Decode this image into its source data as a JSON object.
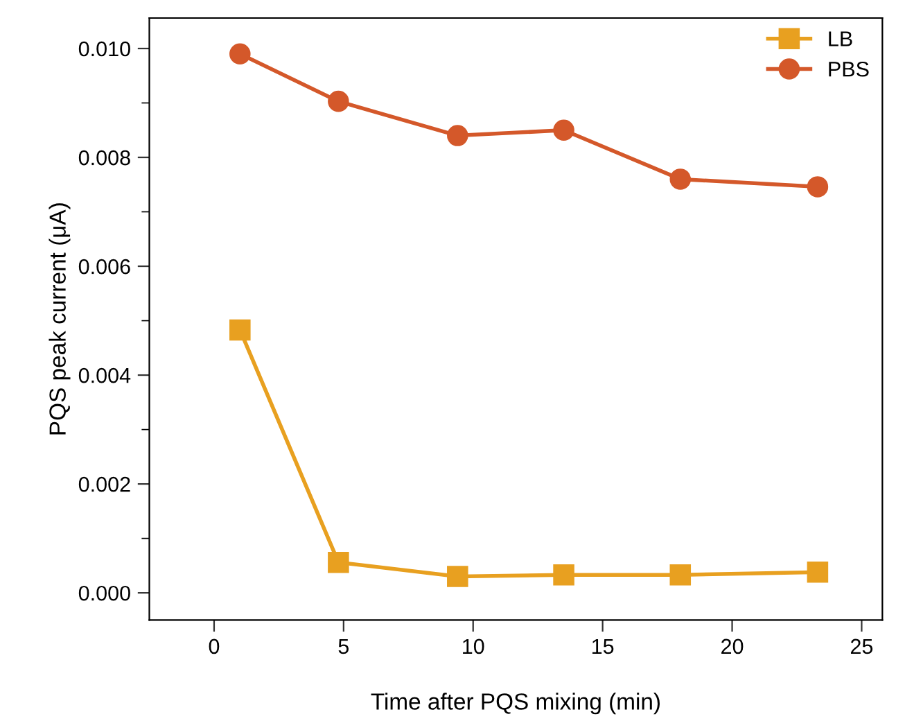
{
  "chart_data": {
    "type": "line",
    "xlabel": "Time after PQS mixing (min)",
    "ylabel": "PQS peak current (μA)",
    "series": [
      {
        "name": "LB",
        "color": "#e8a020",
        "marker": "square",
        "x": [
          1.0,
          4.8,
          9.4,
          13.5,
          18.0,
          23.3
        ],
        "values": [
          0.00483,
          0.00056,
          0.0003,
          0.00033,
          0.00033,
          0.00038
        ]
      },
      {
        "name": "PBS",
        "color": "#d4582a",
        "marker": "circle",
        "x": [
          1.0,
          4.8,
          9.4,
          13.5,
          18.0,
          23.3
        ],
        "values": [
          0.0099,
          0.00903,
          0.0084,
          0.0085,
          0.0076,
          0.00746
        ]
      }
    ],
    "xlim": [
      -2.5,
      25.8
    ],
    "xticks": [
      0,
      5,
      10,
      15,
      20,
      25
    ],
    "ylim": [
      -0.0005,
      0.01056
    ],
    "yticks": [
      {
        "value": 0,
        "label": "0.000"
      },
      {
        "value": 0.002,
        "label": "0.002"
      },
      {
        "value": 0.004,
        "label": "0.004"
      },
      {
        "value": 0.006,
        "label": "0.006"
      },
      {
        "value": 0.008,
        "label": "0.008"
      },
      {
        "value": 0.01,
        "label": "0.010"
      }
    ],
    "grid": false,
    "legend": "top right",
    "line_style": "solid"
  }
}
